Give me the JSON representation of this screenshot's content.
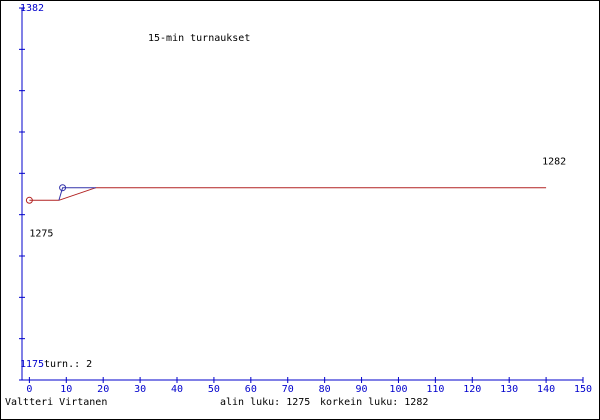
{
  "chart_data": {
    "type": "line",
    "title": "15-min turnaukset",
    "player": "Valtteri Virtanen",
    "min_label": "alin luku: 1275",
    "max_label": "korkein luku: 1282",
    "count_label": "turn.: 2",
    "xlim": [
      -2,
      150
    ],
    "xticks": [
      0,
      10,
      20,
      30,
      40,
      50,
      60,
      70,
      80,
      90,
      100,
      110,
      120,
      130,
      140,
      150
    ],
    "ylim": [
      1175,
      1382
    ],
    "yticks": [
      1175,
      1382
    ],
    "series": [
      {
        "color": "#b22222",
        "x": [
          0,
          8,
          18,
          140
        ],
        "values": [
          1275,
          1275,
          1282,
          1282
        ]
      },
      {
        "color": "#3333aa",
        "x": [
          8,
          9,
          18
        ],
        "values": [
          1275,
          1282,
          1282
        ]
      }
    ]
  }
}
